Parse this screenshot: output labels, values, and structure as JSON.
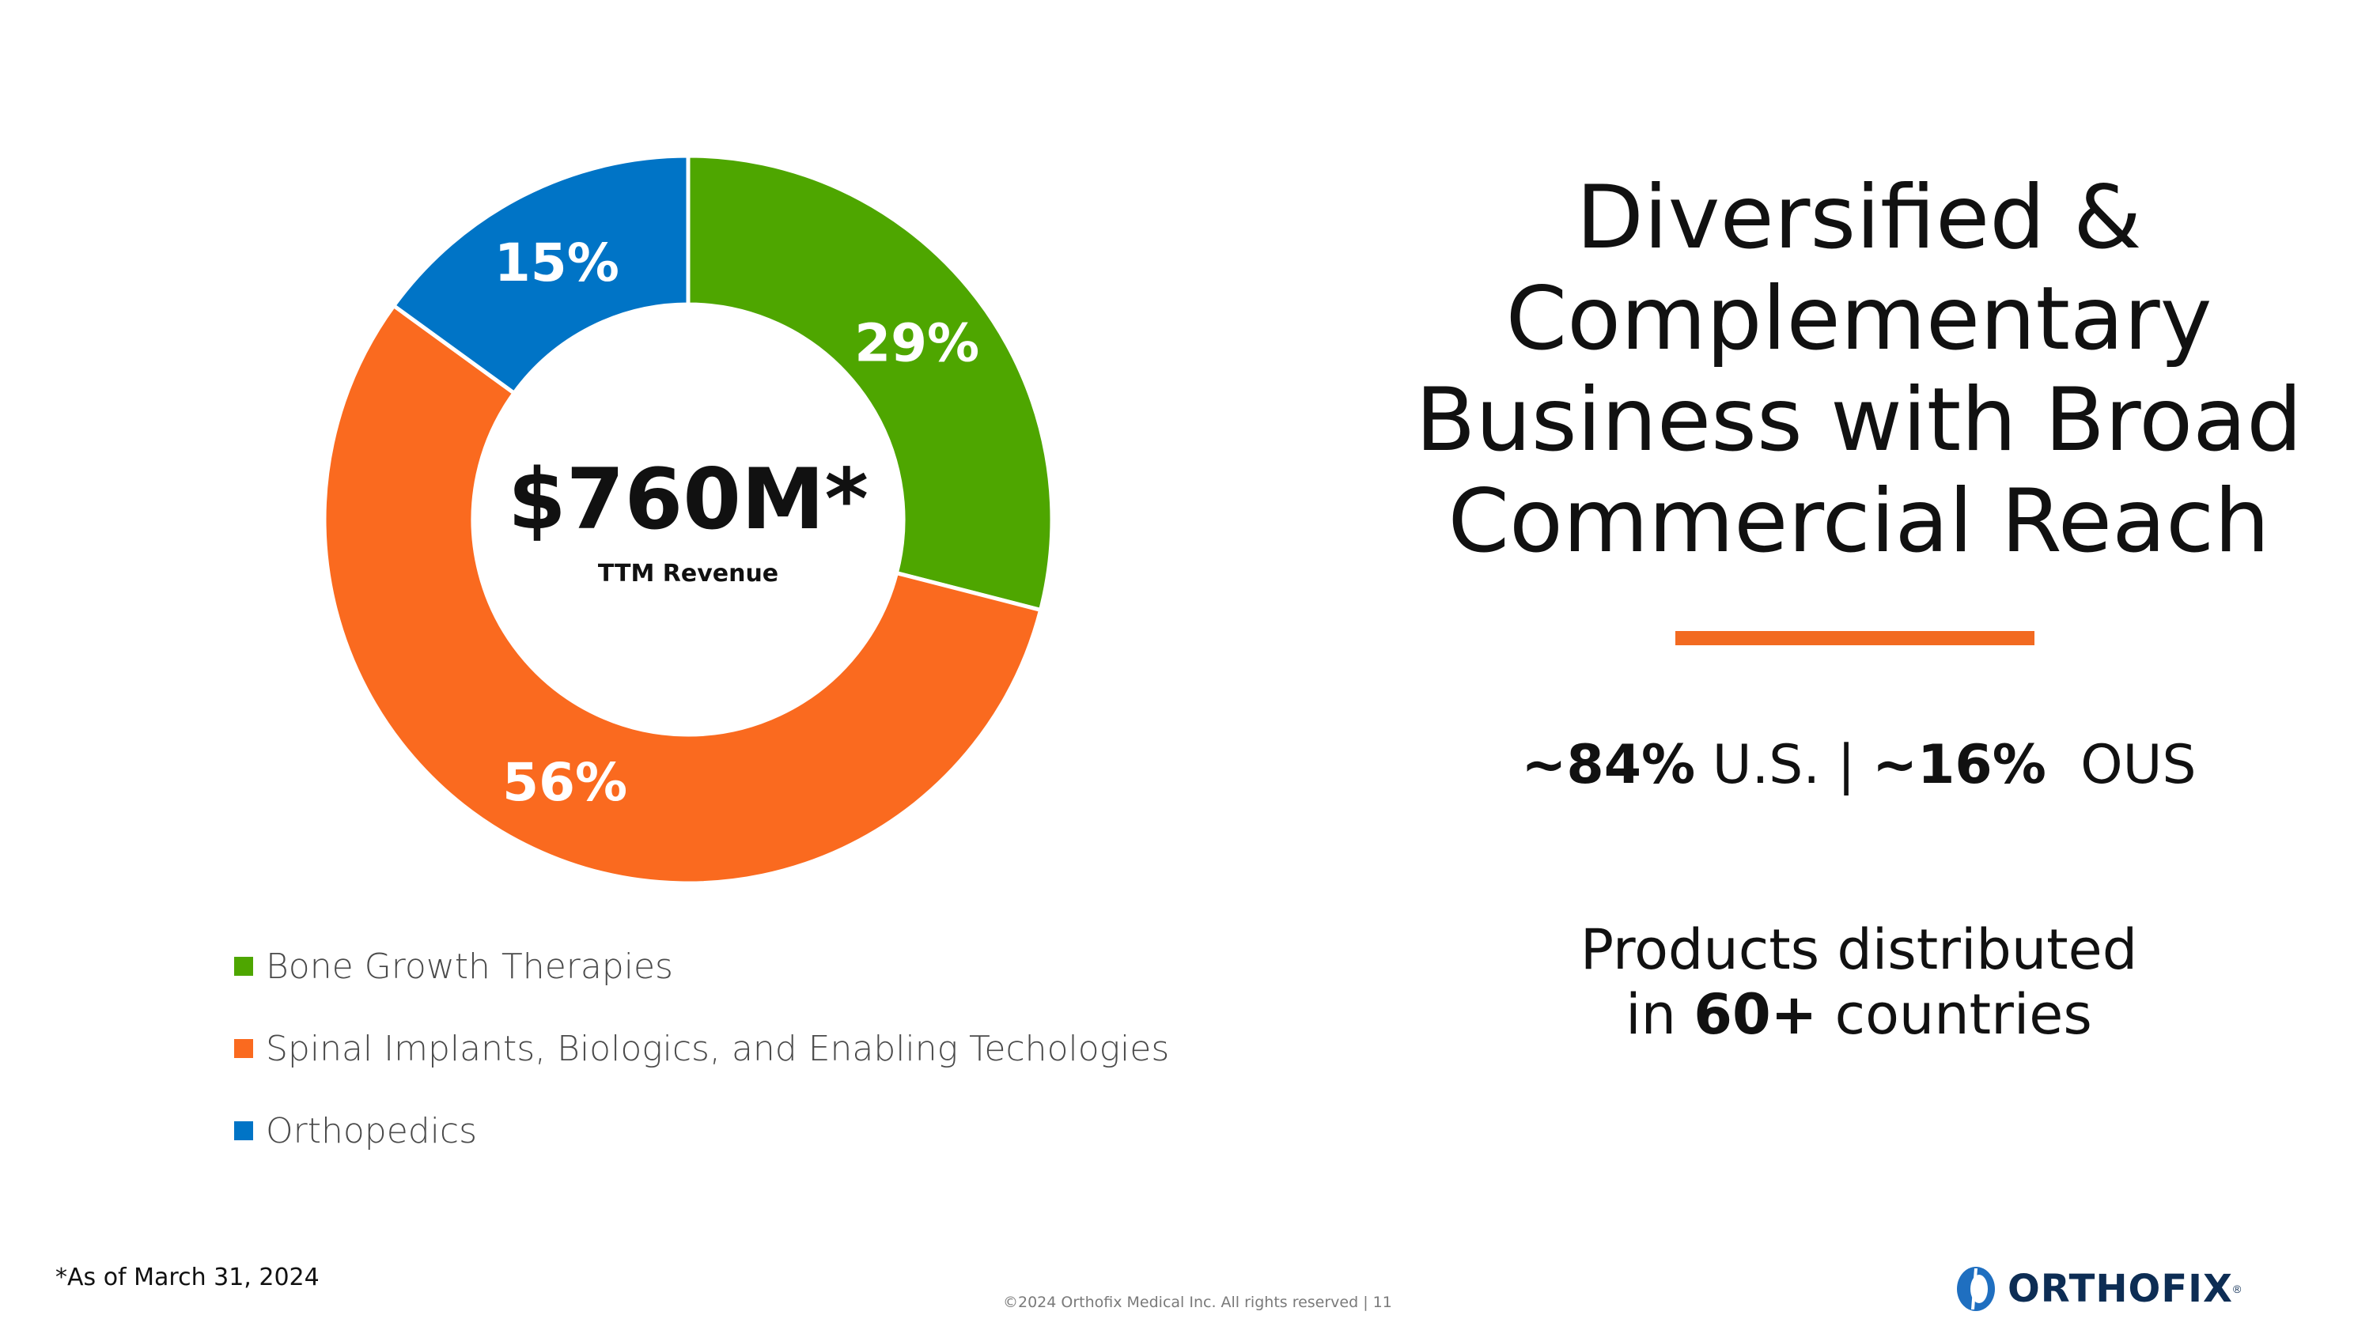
{
  "chart_data": {
    "type": "pie",
    "variant": "donut",
    "center_value": "$760M*",
    "center_label": "TTM Revenue",
    "series": [
      {
        "name": "Bone Growth Therapies",
        "value": 29,
        "label": "29%",
        "color": "#4ea600"
      },
      {
        "name": "Spinal Implants, Biologics, and Enabling Techologies",
        "value": 56,
        "label": "56%",
        "color": "#fa6a1f"
      },
      {
        "name": "Orthopedics",
        "value": 15,
        "label": "15%",
        "color": "#0074c6"
      }
    ],
    "legend_position": "bottom-left"
  },
  "title": {
    "line1": "Diversified &",
    "line2": "Complementary",
    "line3": "Business with Broad",
    "line4": "Commercial Reach"
  },
  "divider_color": "#f26a21",
  "split": {
    "us_value": "~84%",
    "us_label": "U.S. |",
    "ous_value": "~16%",
    "ous_label": "OUS"
  },
  "reach": {
    "line1": "Products distributed",
    "prefix": "in",
    "value": "60+",
    "suffix": "countries"
  },
  "footnote": "*As of March 31, 2024",
  "copyright": "©2024 Orthofix Medical Inc. All rights reserved  |     11",
  "logo": {
    "text": "ORTHOFIX",
    "mark": "®",
    "icon": "orthofix-logo-icon",
    "color": "#0d2d54"
  }
}
